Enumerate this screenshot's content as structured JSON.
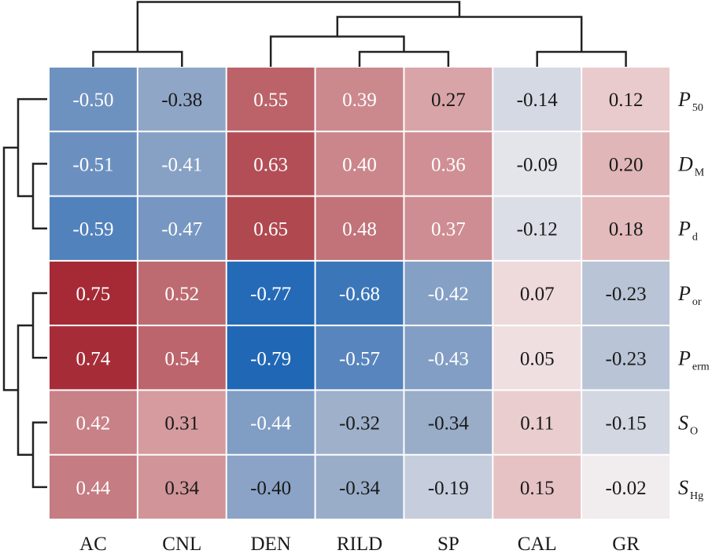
{
  "chart_data": {
    "type": "heatmap",
    "title": "",
    "xlabel": "",
    "ylabel": "",
    "columns": [
      "AC",
      "CNL",
      "DEN",
      "RILD",
      "SP",
      "CAL",
      "GR"
    ],
    "rows": [
      {
        "main": "P",
        "sub": "50"
      },
      {
        "main": "D",
        "sub": "M"
      },
      {
        "main": "P",
        "sub": "d"
      },
      {
        "main": "P",
        "sub": "or"
      },
      {
        "main": "P",
        "sub": "erm"
      },
      {
        "main": "S",
        "sub": "O"
      },
      {
        "main": "S",
        "sub": "Hg"
      }
    ],
    "values": [
      [
        -0.5,
        -0.38,
        0.55,
        0.39,
        0.27,
        -0.14,
        0.12
      ],
      [
        -0.51,
        -0.41,
        0.63,
        0.4,
        0.36,
        -0.09,
        0.2
      ],
      [
        -0.59,
        -0.47,
        0.65,
        0.48,
        0.37,
        -0.12,
        0.18
      ],
      [
        0.75,
        0.52,
        -0.77,
        -0.68,
        -0.42,
        0.07,
        -0.23
      ],
      [
        0.74,
        0.54,
        -0.79,
        -0.57,
        -0.43,
        0.05,
        -0.23
      ],
      [
        0.42,
        0.31,
        -0.44,
        -0.32,
        -0.34,
        0.11,
        -0.15
      ],
      [
        0.44,
        0.34,
        -0.4,
        -0.34,
        -0.19,
        0.15,
        -0.02
      ]
    ],
    "labels": [
      [
        "-0.50",
        "-0.38",
        "0.55",
        "0.39",
        "0.27",
        "-0.14",
        "0.12"
      ],
      [
        "-0.51",
        "-0.41",
        "0.63",
        "0.40",
        "0.36",
        "-0.09",
        "0.20"
      ],
      [
        "-0.59",
        "-0.47",
        "0.65",
        "0.48",
        "0.37",
        "-0.12",
        "0.18"
      ],
      [
        "0.75",
        "0.52",
        "-0.77",
        "-0.68",
        "-0.42",
        "0.07",
        "-0.23"
      ],
      [
        "0.74",
        "0.54",
        "-0.79",
        "-0.57",
        "-0.43",
        "0.05",
        "-0.23"
      ],
      [
        "0.42",
        "0.31",
        "-0.44",
        "-0.32",
        "-0.34",
        "0.11",
        "-0.15"
      ],
      [
        "0.44",
        "0.34",
        "-0.40",
        "-0.34",
        "-0.19",
        "0.15",
        "-0.02"
      ]
    ],
    "label_light": [
      [
        true,
        false,
        true,
        true,
        false,
        false,
        false
      ],
      [
        true,
        true,
        true,
        true,
        true,
        false,
        false
      ],
      [
        true,
        true,
        true,
        true,
        true,
        false,
        false
      ],
      [
        true,
        true,
        true,
        true,
        true,
        false,
        false
      ],
      [
        true,
        true,
        true,
        true,
        true,
        false,
        false
      ],
      [
        true,
        false,
        true,
        false,
        false,
        false,
        false
      ],
      [
        true,
        false,
        false,
        false,
        false,
        false,
        false
      ]
    ],
    "colorscale": {
      "range": [
        -0.8,
        0.8
      ],
      "stops": [
        {
          "v": -0.8,
          "color": "#1e66b6"
        },
        {
          "v": -0.6,
          "color": "#4f80bb"
        },
        {
          "v": -0.45,
          "color": "#7d9bc3"
        },
        {
          "v": -0.3,
          "color": "#a3b3cb"
        },
        {
          "v": -0.1,
          "color": "#e2e3ea"
        },
        {
          "v": 0.0,
          "color": "#f5eeef"
        },
        {
          "v": 0.15,
          "color": "#e6c2c4"
        },
        {
          "v": 0.3,
          "color": "#d69da1"
        },
        {
          "v": 0.45,
          "color": "#c47a80"
        },
        {
          "v": 0.6,
          "color": "#b6575e"
        },
        {
          "v": 0.75,
          "color": "#a52a35"
        }
      ]
    },
    "text_colors": {
      "light": "#ffffff",
      "dark": "#1a1a1a"
    },
    "col_dendrogram": {
      "leaf_order": [
        "AC",
        "CNL",
        "DEN",
        "RILD",
        "SP",
        "CAL",
        "GR"
      ],
      "merges": [
        {
          "a": "AC",
          "b": "CNL",
          "level": 1
        },
        {
          "a": "RILD",
          "b": "SP",
          "level": 1
        },
        {
          "a": "CAL",
          "b": "GR",
          "level": 1
        },
        {
          "a": "DEN",
          "b": "RILD+SP",
          "level": 2
        },
        {
          "a": "DEN+RILD+SP",
          "b": "CAL+GR",
          "level": 3
        },
        {
          "a": "AC+CNL",
          "b": "DEN+RILD+SP+CAL+GR",
          "level": 4
        }
      ]
    },
    "row_dendrogram": {
      "leaf_order": [
        "P50",
        "DM",
        "Pd",
        "Por",
        "Perm",
        "SO",
        "SHg"
      ],
      "merges": [
        {
          "a": "DM",
          "b": "Pd",
          "level": 1
        },
        {
          "a": "Por",
          "b": "Perm",
          "level": 1
        },
        {
          "a": "SO",
          "b": "SHg",
          "level": 1
        },
        {
          "a": "P50",
          "b": "DM+Pd",
          "level": 2
        },
        {
          "a": "Por+Perm",
          "b": "SO+SHg",
          "level": 2
        },
        {
          "a": "P50+DM+Pd",
          "b": "Por+Perm+SO+SHg",
          "level": 3
        }
      ]
    },
    "legend": "none",
    "grid": false
  }
}
